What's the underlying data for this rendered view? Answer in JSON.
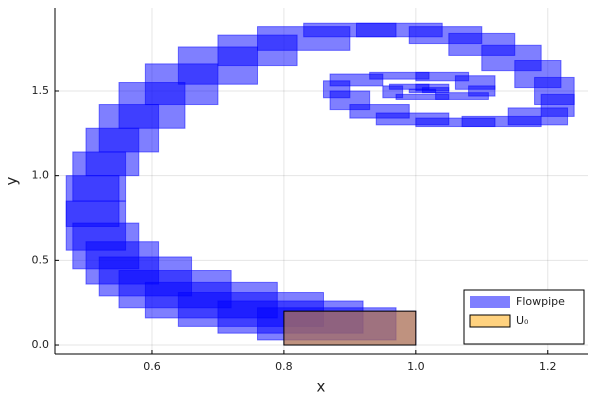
{
  "chart_data": {
    "type": "boxes",
    "xlabel": "x",
    "ylabel": "y",
    "xlim": [
      0.453,
      1.261
    ],
    "ylim": [
      -0.053,
      1.99
    ],
    "xticks": [
      0.6,
      0.8,
      {
        "value": 1,
        "label": "1.0"
      },
      1.2
    ],
    "yticks": [
      {
        "value": 0,
        "label": "0.0"
      },
      0.5,
      {
        "value": 1,
        "label": "1.0"
      },
      1.5
    ],
    "grid": true,
    "legend": "bottom right",
    "series": [
      {
        "name": "Flowpipe",
        "color": "#0000ff",
        "alpha": 0.5,
        "boxes": [
          [
            0.8,
            1.0,
            0,
            0.2
          ],
          [
            0.76,
            0.97,
            0.03,
            0.22
          ],
          [
            0.7,
            0.92,
            0.07,
            0.26
          ],
          [
            0.64,
            0.86,
            0.11,
            0.31
          ],
          [
            0.59,
            0.79,
            0.16,
            0.37
          ],
          [
            0.55,
            0.72,
            0.22,
            0.44
          ],
          [
            0.52,
            0.66,
            0.29,
            0.52
          ],
          [
            0.5,
            0.61,
            0.36,
            0.61
          ],
          [
            0.48,
            0.58,
            0.45,
            0.72
          ],
          [
            0.47,
            0.56,
            0.56,
            0.85
          ],
          [
            0.47,
            0.55,
            0.7,
            1.0
          ],
          [
            0.48,
            0.56,
            0.85,
            1.14
          ],
          [
            0.5,
            0.58,
            1.0,
            1.28
          ],
          [
            0.52,
            0.61,
            1.14,
            1.42
          ],
          [
            0.55,
            0.65,
            1.28,
            1.55
          ],
          [
            0.59,
            0.7,
            1.42,
            1.66
          ],
          [
            0.64,
            0.76,
            1.54,
            1.76
          ],
          [
            0.7,
            0.82,
            1.65,
            1.83
          ],
          [
            0.76,
            0.9,
            1.74,
            1.88
          ],
          [
            0.83,
            0.97,
            1.82,
            1.9
          ],
          [
            0.91,
            1.04,
            1.82,
            1.9
          ],
          [
            0.99,
            1.1,
            1.78,
            1.88
          ],
          [
            1.05,
            1.15,
            1.71,
            1.84
          ],
          [
            1.1,
            1.19,
            1.62,
            1.77
          ],
          [
            1.15,
            1.22,
            1.52,
            1.68
          ],
          [
            1.18,
            1.24,
            1.42,
            1.58
          ],
          [
            1.19,
            1.24,
            1.35,
            1.48
          ],
          [
            1.14,
            1.23,
            1.3,
            1.4
          ],
          [
            1.07,
            1.19,
            1.29,
            1.35
          ],
          [
            1.0,
            1.12,
            1.29,
            1.34
          ],
          [
            0.94,
            1.05,
            1.3,
            1.37
          ],
          [
            0.9,
            0.99,
            1.34,
            1.42
          ],
          [
            0.87,
            0.93,
            1.39,
            1.5
          ],
          [
            0.86,
            0.9,
            1.46,
            1.56
          ],
          [
            0.87,
            0.95,
            1.53,
            1.6
          ],
          [
            0.93,
            1.02,
            1.57,
            1.61
          ],
          [
            1.0,
            1.08,
            1.56,
            1.61
          ],
          [
            1.06,
            1.12,
            1.51,
            1.59
          ],
          [
            1.08,
            1.12,
            1.47,
            1.53
          ],
          [
            1.03,
            1.11,
            1.45,
            1.49
          ],
          [
            0.97,
            1.05,
            1.45,
            1.48
          ],
          [
            0.95,
            0.98,
            1.46,
            1.53
          ],
          [
            0.96,
            1.02,
            1.51,
            1.54
          ],
          [
            1.0,
            1.05,
            1.5,
            1.54
          ],
          [
            1.01,
            1.05,
            1.49,
            1.52
          ],
          [
            0.99,
            1.03,
            1.49,
            1.51
          ]
        ]
      },
      {
        "name": "U₀",
        "color": "#ffa500",
        "alpha": 0.5,
        "stroke": "#000000",
        "boxes": [
          [
            0.8,
            1.0,
            0,
            0.2
          ]
        ]
      }
    ]
  }
}
